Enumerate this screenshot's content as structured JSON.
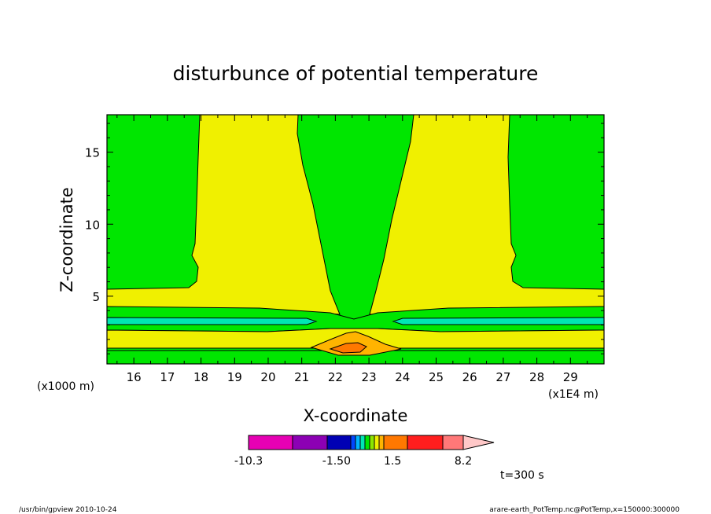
{
  "chart_data": {
    "type": "heatmap",
    "title": "disturbunce of potential temperature",
    "xlabel": "X-coordinate",
    "ylabel": "Z-coordinate",
    "x_unit_label": "(x1E4 m)",
    "y_unit_label": "(x1000 m)",
    "xlim": [
      15.2,
      30
    ],
    "ylim": [
      0.3,
      17.6
    ],
    "x_ticks": [
      16,
      17,
      18,
      19,
      20,
      21,
      22,
      23,
      24,
      25,
      26,
      27,
      28,
      29
    ],
    "y_ticks": [
      5,
      10,
      15
    ],
    "colorbar": {
      "labels": [
        {
          "text": "-10.3",
          "value": -10.3
        },
        {
          "text": "-1.50",
          "value": -1.5
        },
        {
          "text": "1.5",
          "value": 1.5
        },
        {
          "text": "8.2",
          "value": 8.2
        }
      ],
      "colors": [
        "#e600b4",
        "#8c00b4",
        "#0000b4",
        "#0046ff",
        "#00b4ff",
        "#00e6b4",
        "#00e600",
        "#8ce600",
        "#f0f000",
        "#ffb400",
        "#ff7800",
        "#ff1e1e",
        "#ff7878",
        "#ffc8c8"
      ]
    },
    "regions": [
      {
        "name": "background",
        "value_range": [
          0,
          0.3
        ],
        "color": "#00e600"
      },
      {
        "name": "left warm column",
        "x_range": [
          17.9,
          21.2
        ],
        "z_range": [
          5.2,
          17.6
        ],
        "color": "#f0f000"
      },
      {
        "name": "right warm column",
        "x_range": [
          23.7,
          27.2
        ],
        "z_range": [
          5.2,
          17.6
        ],
        "color": "#f0f000"
      },
      {
        "name": "low-level warm layer",
        "z_range": [
          1.0,
          5.2
        ],
        "color": "#f0f000"
      },
      {
        "name": "cold layer",
        "z_range": [
          2.9,
          3.3
        ],
        "color": "#00e6b4"
      },
      {
        "name": "warm core",
        "x": 22.5,
        "z": 1.2,
        "color": "#ff7800"
      }
    ],
    "annotation": "t=300 s"
  },
  "footer": {
    "left": "/usr/bin/gpview   2010-10-24",
    "right": "arare-earth_PotTemp.nc@PotTemp,x=150000:300000"
  },
  "colors": {
    "green": "#00e600",
    "yellow": "#f0f000",
    "cyan": "#00e6b4",
    "orange": "#ffb400",
    "darkorange": "#ff7800"
  }
}
